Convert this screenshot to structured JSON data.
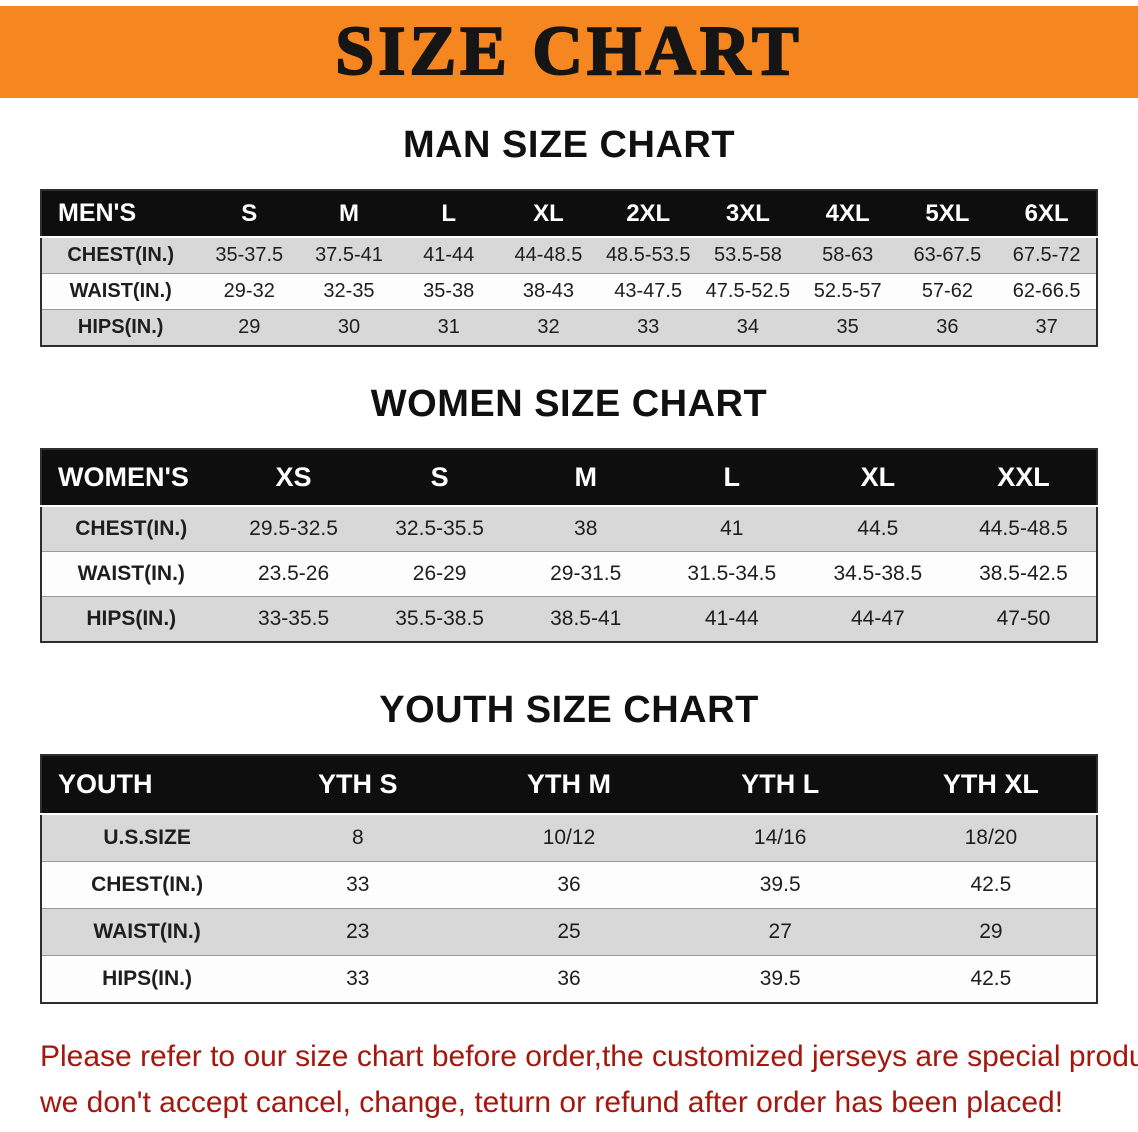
{
  "banner": {
    "title": "SIZE CHART",
    "bg_color": "#F6861F"
  },
  "men": {
    "heading": "MAN SIZE CHART",
    "table": {
      "header": [
        "MEN'S",
        "S",
        "M",
        "L",
        "XL",
        "2XL",
        "3XL",
        "4XL",
        "5XL",
        "6XL"
      ],
      "rows": [
        [
          "CHEST(IN.)",
          "35-37.5",
          "37.5-41",
          "41-44",
          "44-48.5",
          "48.5-53.5",
          "53.5-58",
          "58-63",
          "63-67.5",
          "67.5-72"
        ],
        [
          "WAIST(IN.)",
          "29-32",
          "32-35",
          "35-38",
          "38-43",
          "43-47.5",
          "47.5-52.5",
          "52.5-57",
          "57-62",
          "62-66.5"
        ],
        [
          "HIPS(IN.)",
          "29",
          "30",
          "31",
          "32",
          "33",
          "34",
          "35",
          "36",
          "37"
        ]
      ]
    }
  },
  "women": {
    "heading": "WOMEN SIZE CHART",
    "table": {
      "header": [
        "WOMEN'S",
        "XS",
        "S",
        "M",
        "L",
        "XL",
        "XXL"
      ],
      "rows": [
        [
          "CHEST(IN.)",
          "29.5-32.5",
          "32.5-35.5",
          "38",
          "41",
          "44.5",
          "44.5-48.5"
        ],
        [
          "WAIST(IN.)",
          "23.5-26",
          "26-29",
          "29-31.5",
          "31.5-34.5",
          "34.5-38.5",
          "38.5-42.5"
        ],
        [
          "HIPS(IN.)",
          "33-35.5",
          "35.5-38.5",
          "38.5-41",
          "41-44",
          "44-47",
          "47-50"
        ]
      ]
    }
  },
  "youth": {
    "heading": "YOUTH SIZE CHART",
    "table": {
      "header": [
        "YOUTH",
        "YTH S",
        "YTH M",
        "YTH L",
        "YTH XL"
      ],
      "rows": [
        [
          "U.S.SIZE",
          "8",
          "10/12",
          "14/16",
          "18/20"
        ],
        [
          "CHEST(IN.)",
          "33",
          "36",
          "39.5",
          "42.5"
        ],
        [
          "WAIST(IN.)",
          "23",
          "25",
          "27",
          "29"
        ],
        [
          "HIPS(IN.)",
          "33",
          "36",
          "39.5",
          "42.5"
        ]
      ]
    }
  },
  "disclaimer": {
    "line1": "Please refer to our size chart before order,the customized jerseys are special products,",
    "line2": "we don't accept cancel, change, teturn or refund after order has been placed!",
    "color": "#A3170E"
  },
  "colors": {
    "banner_bg": "#F6861F",
    "table_header_bg": "#0E0E0E",
    "row_alt_bg": "#D8D8D8",
    "row_bg": "#FDFDFD"
  }
}
